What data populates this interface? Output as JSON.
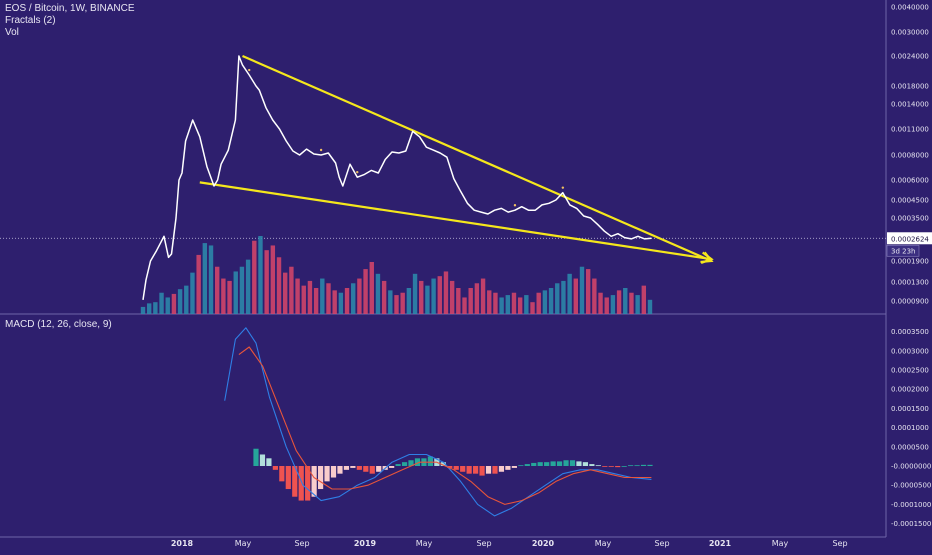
{
  "header": {
    "symbol_line": "EOS / Bitcoin, 1W, BINANCE",
    "indicator_1": "Fractals (2)",
    "indicator_2": "Vol"
  },
  "macd_header": {
    "label": "MACD (12, 26, close, 9)"
  },
  "price_tag": {
    "value": "0.0002624",
    "countdown": "3d 23h"
  },
  "colors": {
    "background": "#2e1f6e",
    "price_line": "#ffffff",
    "trend_lines": "#f5e71c",
    "volume_up": "#2b8dae",
    "volume_down": "#d9466a",
    "macd_line": "#2f7fe6",
    "signal_line": "#e8553a",
    "hist_pos_strong": "#26a69a",
    "hist_pos_weak": "#b2dfdb",
    "hist_neg_strong": "#ef5350",
    "hist_neg_weak": "#f8cccc"
  },
  "chart_data": [
    {
      "type": "line",
      "panel": "price",
      "title": "EOS / Bitcoin, 1W, BINANCE",
      "y_scale": "log",
      "ylim": [
        8.5e-05,
        0.0045
      ],
      "y_ticks": [
        "0.0040000",
        "0.0030000",
        "0.0024000",
        "0.0018000",
        "0.0014000",
        "0.0011000",
        "0.0008000",
        "0.0006000",
        "0.0004500",
        "0.0003500",
        "0.0001900",
        "0.0001300",
        "0.0000900"
      ],
      "x_labels": [
        "2018",
        "May",
        "Sep",
        "2019",
        "May",
        "Sep",
        "2020",
        "May",
        "Sep",
        "2021",
        "May",
        "Sep"
      ],
      "x_labels_bold": [
        "2018",
        "2019",
        "2020",
        "2021"
      ],
      "series": [
        {
          "dates": [
            "2017-07-03",
            "2017-07-17",
            "2017-08-07",
            "2017-09-04",
            "2017-10-09",
            "2017-10-30",
            "2017-11-13",
            "2017-12-04",
            "2017-12-18",
            "2018-01-01",
            "2018-01-08",
            "2018-01-22",
            "2018-02-05",
            "2018-02-19",
            "2018-03-05",
            "2018-03-12",
            "2018-03-19",
            "2018-03-26",
            "2018-04-02",
            "2018-04-16",
            "2018-04-23",
            "2018-04-30",
            "2018-05-14",
            "2018-05-28",
            "2018-06-04",
            "2018-06-18",
            "2018-07-02",
            "2018-07-16",
            "2018-07-30",
            "2018-08-13",
            "2018-08-27",
            "2018-09-10",
            "2018-09-24",
            "2018-10-08",
            "2018-10-22",
            "2018-11-05",
            "2018-11-12",
            "2018-11-19",
            "2018-12-03",
            "2018-12-17",
            "2018-12-31",
            "2019-01-14",
            "2019-01-28",
            "2019-02-11",
            "2019-02-25",
            "2019-03-11",
            "2019-03-25",
            "2019-04-08",
            "2019-04-22",
            "2019-05-06",
            "2019-05-20",
            "2019-06-03",
            "2019-06-17",
            "2019-07-01",
            "2019-07-15",
            "2019-07-29",
            "2019-08-12",
            "2019-08-26",
            "2019-09-09",
            "2019-09-23",
            "2019-10-07",
            "2019-10-21",
            "2019-11-04",
            "2019-11-18",
            "2019-12-02",
            "2019-12-16",
            "2019-12-30",
            "2020-01-13",
            "2020-01-27",
            "2020-02-10",
            "2020-02-24",
            "2020-03-09",
            "2020-03-23",
            "2020-04-06",
            "2020-04-20",
            "2020-05-04",
            "2020-05-18",
            "2020-06-01",
            "2020-06-15",
            "2020-06-29",
            "2020-07-13",
            "2020-07-27",
            "2020-08-10"
          ],
          "values": [
            9.2e-05,
            0.000135,
            0.00019,
            0.00022,
            0.00027,
            0.0002,
            0.00021,
            0.00035,
            0.0006,
            0.00065,
            0.00095,
            0.0012,
            0.001,
            0.0007,
            0.00055,
            0.0006,
            0.00072,
            0.00078,
            0.00085,
            0.0012,
            0.0024,
            0.0022,
            0.002,
            0.0018,
            0.0017,
            0.00135,
            0.0012,
            0.0011,
            0.00095,
            0.00084,
            0.0008,
            0.00086,
            0.00081,
            0.0008,
            0.00082,
            0.00073,
            0.00062,
            0.00055,
            0.00072,
            0.00062,
            0.00064,
            0.00067,
            0.00065,
            0.00076,
            0.00083,
            0.00082,
            0.00084,
            0.00107,
            0.001,
            0.00088,
            0.00085,
            0.00082,
            0.00078,
            0.00061,
            0.00051,
            0.00043,
            0.00039,
            0.00038,
            0.00037,
            0.00039,
            0.0004,
            0.00038,
            0.00039,
            0.00041,
            0.00039,
            0.00039,
            0.00042,
            0.00043,
            0.00045,
            0.0005,
            0.00042,
            0.0004,
            0.00036,
            0.00035,
            0.00032,
            0.00029,
            0.00027,
            0.00028,
            0.000265,
            0.00026,
            0.00027,
            0.00026,
            0.0002624
          ]
        }
      ],
      "trendlines": [
        {
          "from": [
            "2018-04-30",
            0.0024
          ],
          "to": [
            "2020-12-14",
            0.00019
          ]
        },
        {
          "from": [
            "2018-02-05",
            0.00058
          ],
          "to": [
            "2020-12-14",
            0.000195
          ]
        }
      ],
      "fractal_marks": [
        "2018-05-14",
        "2018-10-08",
        "2018-12-17",
        "2019-04-15",
        "2019-11-04",
        "2020-02-10"
      ],
      "last_value": 0.0002624
    },
    {
      "type": "bar",
      "panel": "volume",
      "title": "Vol",
      "values": [
        6,
        9,
        10,
        18,
        14,
        17,
        21,
        24,
        35,
        50,
        60,
        58,
        40,
        30,
        28,
        36,
        40,
        46,
        62,
        66,
        54,
        58,
        48,
        35,
        40,
        30,
        24,
        28,
        22,
        30,
        26,
        20,
        18,
        22,
        26,
        30,
        38,
        44,
        34,
        28,
        20,
        16,
        18,
        22,
        34,
        28,
        24,
        30,
        32,
        36,
        28,
        22,
        14,
        22,
        26,
        30,
        20,
        18,
        14,
        16,
        18,
        14,
        16,
        10,
        18,
        20,
        22,
        26,
        28,
        34,
        30,
        40,
        38,
        30,
        18,
        14,
        16,
        20,
        22,
        18,
        16,
        24,
        12
      ],
      "up": [
        true,
        true,
        true,
        true,
        true,
        false,
        true,
        true,
        true,
        false,
        true,
        true,
        false,
        false,
        false,
        true,
        true,
        true,
        false,
        true,
        false,
        false,
        false,
        false,
        false,
        false,
        false,
        false,
        false,
        true,
        false,
        false,
        true,
        false,
        true,
        false,
        false,
        false,
        true,
        false,
        true,
        false,
        false,
        true,
        true,
        false,
        true,
        true,
        false,
        false,
        false,
        false,
        false,
        false,
        false,
        false,
        false,
        false,
        true,
        true,
        false,
        false,
        true,
        false,
        false,
        true,
        true,
        true,
        true,
        true,
        false,
        true,
        false,
        false,
        false,
        false,
        true,
        false,
        true,
        false,
        true,
        false,
        true
      ]
    },
    {
      "type": "line",
      "panel": "macd",
      "title": "MACD (12, 26, close, 9)",
      "ylim": [
        -0.00016,
        0.00038
      ],
      "y_ticks": [
        "0.0003500",
        "0.0003000",
        "0.0002500",
        "0.0002000",
        "0.0001500",
        "0.0001000",
        "0.0000500",
        "-0.0000000",
        "-0.0000500",
        "-0.0001000",
        "-0.0001500"
      ],
      "series": [
        {
          "name": "",
          "dates": [
            "2018-03-26",
            "2018-04-16",
            "2018-05-07",
            "2018-05-28",
            "2018-06-25",
            "2018-07-30",
            "2018-09-03",
            "2018-10-08",
            "2018-11-12",
            "2018-12-17",
            "2019-01-21",
            "2019-02-25",
            "2019-04-01",
            "2019-05-06",
            "2019-06-10",
            "2019-07-15",
            "2019-08-19",
            "2019-09-23",
            "2019-10-28",
            "2019-12-02",
            "2020-01-06",
            "2020-02-10",
            "2020-03-16",
            "2020-04-20",
            "2020-05-25",
            "2020-06-29",
            "2020-08-10"
          ],
          "values": [
            0.00017,
            0.00033,
            0.00036,
            0.00032,
            0.00018,
            5e-05,
            -5e-05,
            -9e-05,
            -8e-05,
            -5e-05,
            -3e-05,
            1e-05,
            3e-05,
            3e-05,
            1e-05,
            -4e-05,
            -0.0001,
            -0.00013,
            -0.00011,
            -8e-05,
            -5e-05,
            -2e-05,
            -1e-05,
            -1e-05,
            -2e-05,
            -3e-05,
            -3.5e-05
          ]
        },
        {
          "name": "",
          "dates": [
            "2018-04-23",
            "2018-05-14",
            "2018-06-11",
            "2018-07-16",
            "2018-08-20",
            "2018-09-24",
            "2018-10-29",
            "2018-12-03",
            "2019-01-07",
            "2019-02-11",
            "2019-03-18",
            "2019-04-22",
            "2019-05-27",
            "2019-07-01",
            "2019-08-05",
            "2019-09-09",
            "2019-10-14",
            "2019-11-18",
            "2019-12-23",
            "2020-01-27",
            "2020-03-02",
            "2020-04-06",
            "2020-05-11",
            "2020-06-15",
            "2020-08-10"
          ],
          "values": [
            0.00029,
            0.00031,
            0.00026,
            0.00015,
            4e-05,
            -3e-05,
            -6e-05,
            -6e-05,
            -5e-05,
            -3e-05,
            -1e-05,
            1e-05,
            1e-05,
            -1e-05,
            -4e-05,
            -8e-05,
            -0.0001,
            -9e-05,
            -7e-05,
            -4e-05,
            -2e-05,
            -1e-05,
            -2e-05,
            -3e-05,
            -3e-05
          ]
        }
      ],
      "histogram": [
        4.5e-05,
        3e-05,
        2e-05,
        -1e-05,
        -4e-05,
        -6e-05,
        -8e-05,
        -9e-05,
        -9e-05,
        -8e-05,
        -6e-05,
        -4e-05,
        -3e-05,
        -2e-05,
        -1e-05,
        -5e-06,
        -1e-05,
        -1.5e-05,
        -2e-05,
        -1.5e-05,
        -1e-05,
        -5e-06,
        5e-06,
        1e-05,
        1.5e-05,
        2e-05,
        2e-05,
        2.5e-05,
        2e-05,
        1e-05,
        -5e-06,
        -1e-05,
        -1.5e-05,
        -2e-05,
        -2e-05,
        -2.5e-05,
        -2e-05,
        -2e-05,
        -1.5e-05,
        -1e-05,
        -5e-06,
        2e-06,
        5e-06,
        8e-06,
        1e-05,
        1e-05,
        1.2e-05,
        1.2e-05,
        1.5e-05,
        1.5e-05,
        1.2e-05,
        1e-05,
        5e-06,
        2e-06,
        -2e-06,
        -2e-06,
        -3e-06,
        0,
        2e-06,
        2e-06,
        3e-06,
        3e-06
      ]
    }
  ]
}
